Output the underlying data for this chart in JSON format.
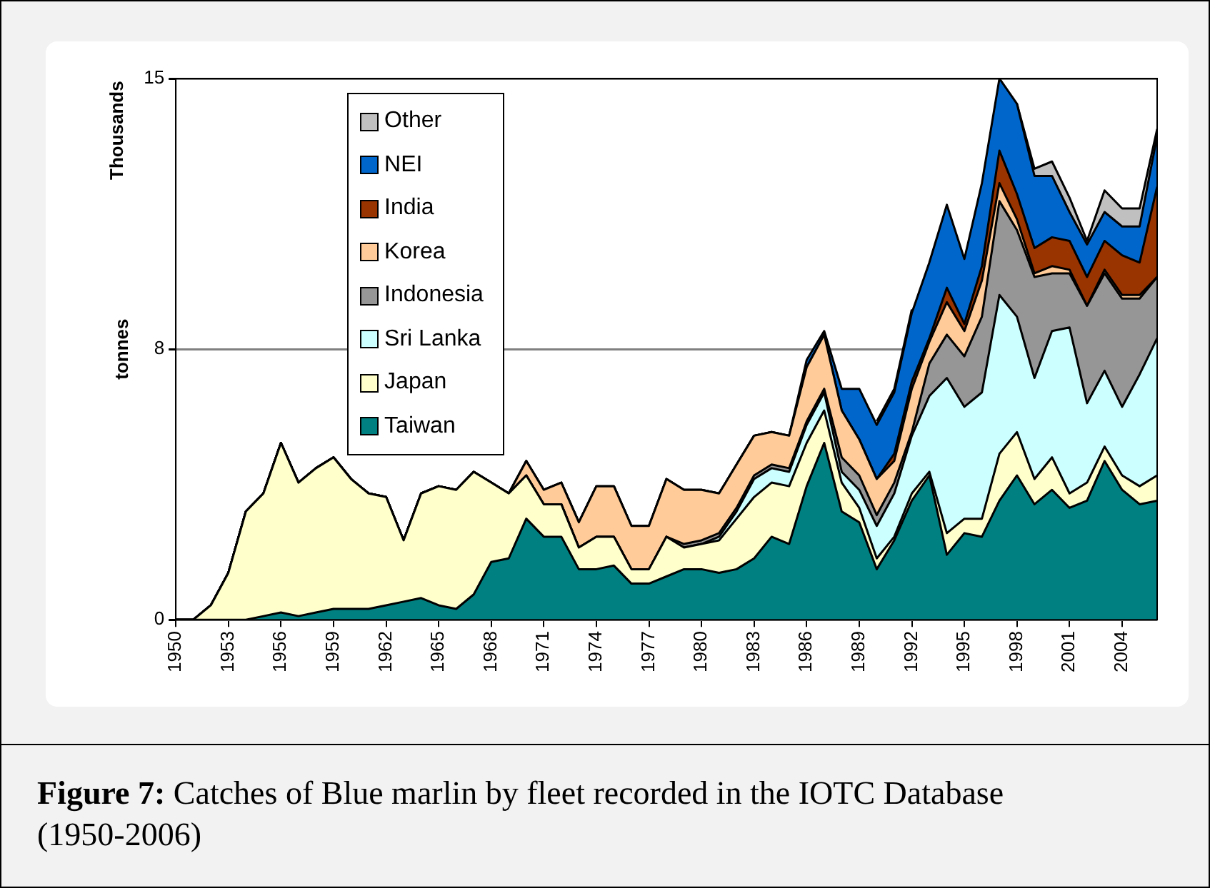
{
  "chart_data": {
    "type": "area",
    "stacked": true,
    "title": "Figure 7: Catches of Blue marlin by fleet recorded in the IOTC Database (1950-2006)",
    "ylabel": "tonnes",
    "annotations": [
      "Thousands"
    ],
    "x": [
      1950,
      1951,
      1952,
      1953,
      1954,
      1955,
      1956,
      1957,
      1958,
      1959,
      1960,
      1961,
      1962,
      1963,
      1964,
      1965,
      1966,
      1967,
      1968,
      1969,
      1970,
      1971,
      1972,
      1973,
      1974,
      1975,
      1976,
      1977,
      1978,
      1979,
      1980,
      1981,
      1982,
      1983,
      1984,
      1985,
      1986,
      1987,
      1988,
      1989,
      1990,
      1991,
      1992,
      1993,
      1994,
      1995,
      1996,
      1997,
      1998,
      1999,
      2000,
      2001,
      2002,
      2003,
      2004,
      2005,
      2006
    ],
    "xlim": [
      1950,
      2006
    ],
    "xticks": [
      1950,
      1953,
      1956,
      1959,
      1962,
      1965,
      1968,
      1971,
      1974,
      1977,
      1980,
      1983,
      1986,
      1989,
      1992,
      1995,
      1998,
      2001,
      2004
    ],
    "ylim": [
      0,
      15
    ],
    "yticks": [
      0,
      {
        "value": 7.5,
        "label": "8"
      },
      15
    ],
    "grid": "y",
    "legend": "top left",
    "marker": "none",
    "series": [
      {
        "name": "Taiwan",
        "color": "#008080",
        "values": [
          0,
          0,
          0,
          0,
          0,
          0.1,
          0.2,
          0.1,
          0.2,
          0.3,
          0.3,
          0.3,
          0.4,
          0.5,
          0.6,
          0.4,
          0.3,
          0.7,
          1.6,
          1.7,
          2.8,
          2.3,
          2.3,
          1.4,
          1.4,
          1.5,
          1.0,
          1.0,
          1.2,
          1.4,
          1.4,
          1.3,
          1.4,
          1.7,
          2.3,
          2.1,
          3.7,
          4.9,
          3.0,
          2.7,
          1.4,
          2.2,
          3.3,
          4.0,
          1.8,
          2.4,
          2.3,
          3.3,
          4.0,
          3.2,
          3.6,
          3.1,
          3.3,
          4.4,
          3.6,
          3.2,
          3.3
        ]
      },
      {
        "name": "Japan",
        "color": "#ffffcc",
        "values": [
          0,
          0,
          0.4,
          1.3,
          3.0,
          3.4,
          4.7,
          3.7,
          4.0,
          4.2,
          3.6,
          3.2,
          3.0,
          1.7,
          2.9,
          3.3,
          3.3,
          3.4,
          2.2,
          1.8,
          1.2,
          0.9,
          0.9,
          0.6,
          0.9,
          0.8,
          0.4,
          0.4,
          1.1,
          0.6,
          0.7,
          0.9,
          1.4,
          1.7,
          1.5,
          1.6,
          1.2,
          0.9,
          0.8,
          0.4,
          0.3,
          0.1,
          0.2,
          0.1,
          0.6,
          0.4,
          0.5,
          1.3,
          1.2,
          0.7,
          0.9,
          0.4,
          0.5,
          0.4,
          0.4,
          0.5,
          0.7
        ]
      },
      {
        "name": "Sri Lanka",
        "color": "#ccffff",
        "values": [
          0,
          0,
          0,
          0,
          0,
          0,
          0,
          0,
          0,
          0,
          0,
          0,
          0,
          0,
          0,
          0,
          0,
          0,
          0,
          0,
          0,
          0,
          0,
          0,
          0,
          0,
          0,
          0,
          0,
          0,
          0,
          0.1,
          0.2,
          0.5,
          0.4,
          0.4,
          0.5,
          0.5,
          0.3,
          0.5,
          0.9,
          1.2,
          1.6,
          2.1,
          4.3,
          3.1,
          3.5,
          4.4,
          3.2,
          2.8,
          3.5,
          4.6,
          2.2,
          2.1,
          1.9,
          3.1,
          3.8
        ]
      },
      {
        "name": "Indonesia",
        "color": "#969696",
        "values": [
          0,
          0,
          0,
          0,
          0,
          0,
          0,
          0,
          0,
          0,
          0,
          0,
          0,
          0,
          0,
          0,
          0,
          0,
          0,
          0,
          0,
          0,
          0,
          0,
          0,
          0,
          0,
          0,
          0,
          0.1,
          0.1,
          0.1,
          0.1,
          0.1,
          0.1,
          0.1,
          0.1,
          0.1,
          0.4,
          0.4,
          0.3,
          0.3,
          0.1,
          0.9,
          1.2,
          1.4,
          2.1,
          2.6,
          2.4,
          2.8,
          1.6,
          1.5,
          2.7,
          2.7,
          3.0,
          2.1,
          1.7
        ]
      },
      {
        "name": "Korea",
        "color": "#ffcc99",
        "values": [
          0,
          0,
          0,
          0,
          0,
          0,
          0,
          0,
          0,
          0,
          0,
          0,
          0,
          0,
          0,
          0,
          0,
          0,
          0,
          0,
          0.4,
          0.4,
          0.6,
          0.7,
          1.4,
          1.4,
          1.2,
          1.2,
          1.6,
          1.5,
          1.4,
          1.1,
          1.2,
          1.1,
          0.9,
          0.9,
          1.5,
          1.5,
          1.3,
          1.0,
          1.0,
          0.6,
          1.2,
          0.6,
          0.9,
          0.7,
          1.0,
          0.5,
          0.3,
          0.1,
          0.2,
          0.1,
          0,
          0.1,
          0.1,
          0.1,
          0
        ]
      },
      {
        "name": "India",
        "color": "#993300",
        "values": [
          0,
          0,
          0,
          0,
          0,
          0,
          0,
          0,
          0,
          0,
          0,
          0,
          0,
          0,
          0,
          0,
          0,
          0,
          0,
          0,
          0,
          0,
          0,
          0,
          0,
          0,
          0,
          0,
          0,
          0,
          0,
          0,
          0,
          0,
          0,
          0,
          0,
          0,
          0,
          0,
          0,
          0.2,
          0.2,
          0.1,
          0.4,
          0.2,
          0.4,
          0.9,
          0.7,
          0.7,
          0.8,
          0.8,
          0.8,
          0.8,
          1.1,
          0.9,
          2.5
        ]
      },
      {
        "name": "NEI",
        "color": "#0066cc",
        "values": [
          0,
          0,
          0,
          0,
          0,
          0,
          0,
          0,
          0,
          0,
          0,
          0,
          0,
          0,
          0,
          0,
          0,
          0,
          0,
          0,
          0,
          0,
          0,
          0,
          0,
          0,
          0,
          0,
          0,
          0,
          0,
          0,
          0,
          0,
          0,
          0,
          0.2,
          0.1,
          0.6,
          1.4,
          1.5,
          1.7,
          1.9,
          2.1,
          2.3,
          1.8,
          2.3,
          2.0,
          2.5,
          2.0,
          1.7,
          0.8,
          0.9,
          0.8,
          0.8,
          1.0,
          1.4
        ]
      },
      {
        "name": "Other",
        "color": "#c0c0c0",
        "values": [
          null,
          null,
          null,
          null,
          null,
          null,
          null,
          null,
          null,
          null,
          null,
          null,
          null,
          null,
          null,
          null,
          null,
          null,
          null,
          null,
          null,
          null,
          null,
          null,
          null,
          null,
          null,
          null,
          null,
          null,
          null,
          null,
          null,
          null,
          null,
          null,
          null,
          null,
          null,
          null,
          0.1,
          0.1,
          0.1,
          null,
          null,
          null,
          null,
          null,
          0,
          0.2,
          0.4,
          0.4,
          0.1,
          0.6,
          0.5,
          0.5,
          0.2
        ]
      }
    ]
  }
}
